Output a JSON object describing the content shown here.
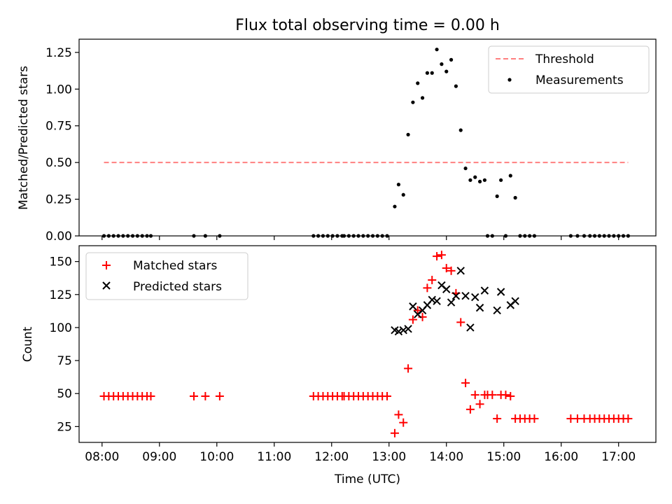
{
  "chart_data": [
    {
      "type": "scatter",
      "title": "Flux total observing time = 0.00 h",
      "xlabel": "",
      "ylabel": "Matched/Predicted stars",
      "ylim": [
        0,
        1.34
      ],
      "xlim_hours": [
        7.6,
        17.65
      ],
      "x_ticks": [
        "08:00",
        "09:00",
        "10:00",
        "11:00",
        "12:00",
        "13:00",
        "14:00",
        "15:00",
        "16:00",
        "17:00"
      ],
      "y_ticks": [
        "0.00",
        "0.25",
        "0.50",
        "0.75",
        "1.00",
        "1.25"
      ],
      "legend_position": "top-right",
      "threshold": {
        "name": "Threshold",
        "value": 0.5,
        "x_start": "08:02",
        "x_end": "17:10",
        "color": "#ff8080",
        "style": "dashed"
      },
      "series": [
        {
          "name": "Measurements",
          "color": "#000000",
          "marker": "dot",
          "points": [
            [
              "08:02",
              0
            ],
            [
              "08:07",
              0
            ],
            [
              "08:12",
              0
            ],
            [
              "08:17",
              0
            ],
            [
              "08:22",
              0
            ],
            [
              "08:27",
              0
            ],
            [
              "08:32",
              0
            ],
            [
              "08:37",
              0
            ],
            [
              "08:42",
              0
            ],
            [
              "08:47",
              0
            ],
            [
              "08:51",
              0
            ],
            [
              "09:36",
              0
            ],
            [
              "09:48",
              0
            ],
            [
              "10:03",
              0
            ],
            [
              "11:41",
              0
            ],
            [
              "11:46",
              0
            ],
            [
              "11:51",
              0
            ],
            [
              "11:56",
              0
            ],
            [
              "12:01",
              0
            ],
            [
              "12:06",
              0
            ],
            [
              "12:11",
              0
            ],
            [
              "12:13",
              0
            ],
            [
              "12:18",
              0
            ],
            [
              "12:23",
              0
            ],
            [
              "12:28",
              0
            ],
            [
              "12:33",
              0
            ],
            [
              "12:38",
              0
            ],
            [
              "12:43",
              0
            ],
            [
              "12:48",
              0
            ],
            [
              "12:53",
              0
            ],
            [
              "12:58",
              0
            ],
            [
              "13:06",
              0.2
            ],
            [
              "13:10",
              0.35
            ],
            [
              "13:15",
              0.28
            ],
            [
              "13:20",
              0.69
            ],
            [
              "13:25",
              0.91
            ],
            [
              "13:30",
              1.04
            ],
            [
              "13:35",
              0.94
            ],
            [
              "13:40",
              1.11
            ],
            [
              "13:45",
              1.11
            ],
            [
              "13:50",
              1.27
            ],
            [
              "13:55",
              1.17
            ],
            [
              "14:00",
              1.12
            ],
            [
              "14:05",
              1.2
            ],
            [
              "14:10",
              1.02
            ],
            [
              "14:15",
              0.72
            ],
            [
              "14:20",
              0.46
            ],
            [
              "14:25",
              0.38
            ],
            [
              "14:30",
              0.4
            ],
            [
              "14:35",
              0.37
            ],
            [
              "14:40",
              0.38
            ],
            [
              "14:43",
              0
            ],
            [
              "14:48",
              0
            ],
            [
              "14:53",
              0.27
            ],
            [
              "14:57",
              0.38
            ],
            [
              "15:02",
              0
            ],
            [
              "15:07",
              0.41
            ],
            [
              "15:12",
              0.26
            ],
            [
              "15:17",
              0
            ],
            [
              "15:22",
              0
            ],
            [
              "15:27",
              0
            ],
            [
              "15:32",
              0
            ],
            [
              "16:10",
              0
            ],
            [
              "16:17",
              0
            ],
            [
              "16:24",
              0
            ],
            [
              "16:30",
              0
            ],
            [
              "16:35",
              0
            ],
            [
              "16:40",
              0
            ],
            [
              "16:45",
              0
            ],
            [
              "16:50",
              0
            ],
            [
              "16:55",
              0
            ],
            [
              "17:00",
              0
            ],
            [
              "17:05",
              0
            ],
            [
              "17:10",
              0
            ]
          ]
        }
      ]
    },
    {
      "type": "scatter",
      "title": "",
      "xlabel": "Time (UTC)",
      "ylabel": "Count",
      "ylim": [
        13,
        162
      ],
      "xlim_hours": [
        7.6,
        17.65
      ],
      "x_ticks": [
        "08:00",
        "09:00",
        "10:00",
        "11:00",
        "12:00",
        "13:00",
        "14:00",
        "15:00",
        "16:00",
        "17:00"
      ],
      "y_ticks": [
        "25",
        "50",
        "75",
        "100",
        "125",
        "150"
      ],
      "legend_position": "top-left",
      "series": [
        {
          "name": "Matched stars",
          "color": "#ff0000",
          "marker": "plus",
          "points": [
            [
              "08:02",
              48
            ],
            [
              "08:07",
              48
            ],
            [
              "08:12",
              48
            ],
            [
              "08:17",
              48
            ],
            [
              "08:22",
              48
            ],
            [
              "08:27",
              48
            ],
            [
              "08:32",
              48
            ],
            [
              "08:37",
              48
            ],
            [
              "08:42",
              48
            ],
            [
              "08:47",
              48
            ],
            [
              "08:51",
              48
            ],
            [
              "09:36",
              48
            ],
            [
              "09:48",
              48
            ],
            [
              "10:03",
              48
            ],
            [
              "11:41",
              48
            ],
            [
              "11:46",
              48
            ],
            [
              "11:51",
              48
            ],
            [
              "11:56",
              48
            ],
            [
              "12:01",
              48
            ],
            [
              "12:06",
              48
            ],
            [
              "12:11",
              48
            ],
            [
              "12:13",
              48
            ],
            [
              "12:18",
              48
            ],
            [
              "12:23",
              48
            ],
            [
              "12:28",
              48
            ],
            [
              "12:33",
              48
            ],
            [
              "12:38",
              48
            ],
            [
              "12:43",
              48
            ],
            [
              "12:48",
              48
            ],
            [
              "12:53",
              48
            ],
            [
              "12:58",
              48
            ],
            [
              "13:06",
              20
            ],
            [
              "13:10",
              34
            ],
            [
              "13:15",
              28
            ],
            [
              "13:20",
              69
            ],
            [
              "13:25",
              106
            ],
            [
              "13:30",
              113
            ],
            [
              "13:35",
              108
            ],
            [
              "13:40",
              130
            ],
            [
              "13:45",
              136
            ],
            [
              "13:50",
              154
            ],
            [
              "13:55",
              155
            ],
            [
              "14:00",
              145
            ],
            [
              "14:05",
              143
            ],
            [
              "14:10",
              126
            ],
            [
              "14:15",
              104
            ],
            [
              "14:20",
              58
            ],
            [
              "14:25",
              38
            ],
            [
              "14:30",
              49
            ],
            [
              "14:35",
              42
            ],
            [
              "14:40",
              49
            ],
            [
              "14:43",
              49
            ],
            [
              "14:48",
              49
            ],
            [
              "14:53",
              31
            ],
            [
              "14:57",
              49
            ],
            [
              "15:02",
              49
            ],
            [
              "15:07",
              48
            ],
            [
              "15:12",
              31
            ],
            [
              "15:17",
              31
            ],
            [
              "15:22",
              31
            ],
            [
              "15:27",
              31
            ],
            [
              "15:32",
              31
            ],
            [
              "16:10",
              31
            ],
            [
              "16:17",
              31
            ],
            [
              "16:24",
              31
            ],
            [
              "16:30",
              31
            ],
            [
              "16:35",
              31
            ],
            [
              "16:40",
              31
            ],
            [
              "16:45",
              31
            ],
            [
              "16:50",
              31
            ],
            [
              "16:55",
              31
            ],
            [
              "17:00",
              31
            ],
            [
              "17:05",
              31
            ],
            [
              "17:10",
              31
            ]
          ]
        },
        {
          "name": "Predicted stars",
          "color": "#000000",
          "marker": "x",
          "points": [
            [
              "13:06",
              98
            ],
            [
              "13:10",
              97
            ],
            [
              "13:15",
              98
            ],
            [
              "13:20",
              99
            ],
            [
              "13:25",
              116
            ],
            [
              "13:30",
              110
            ],
            [
              "13:35",
              113
            ],
            [
              "13:40",
              117
            ],
            [
              "13:45",
              121
            ],
            [
              "13:50",
              120
            ],
            [
              "13:55",
              132
            ],
            [
              "14:00",
              129
            ],
            [
              "14:05",
              119
            ],
            [
              "14:10",
              124
            ],
            [
              "14:15",
              143
            ],
            [
              "14:20",
              124
            ],
            [
              "14:25",
              100
            ],
            [
              "14:30",
              123
            ],
            [
              "14:35",
              115
            ],
            [
              "14:40",
              128
            ],
            [
              "14:53",
              113
            ],
            [
              "14:57",
              127
            ],
            [
              "15:07",
              117
            ],
            [
              "15:12",
              120
            ]
          ]
        }
      ]
    }
  ]
}
